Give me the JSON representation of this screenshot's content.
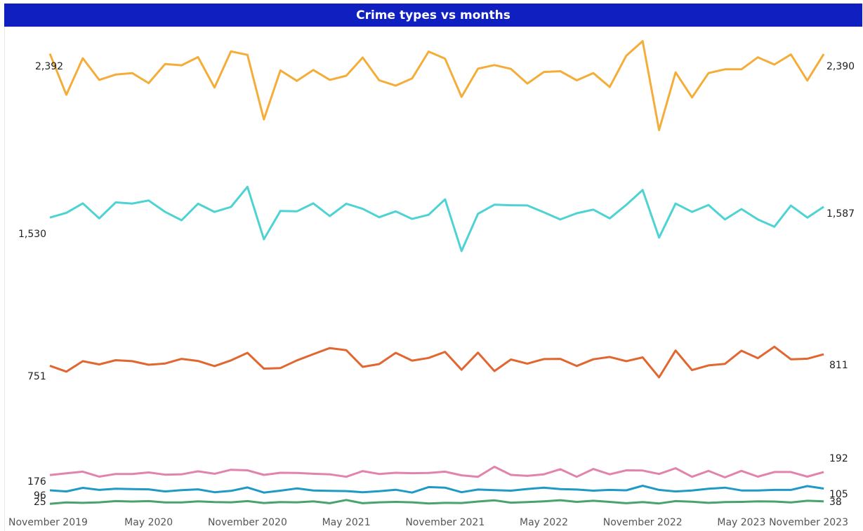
{
  "title": "Crime types vs months",
  "chart_data": {
    "type": "line",
    "title": "Crime types vs months",
    "xlabel": "",
    "ylabel": "",
    "x_start": "2019-11",
    "x_ticks": [
      "November 2019",
      "May 2020",
      "November 2020",
      "May 2021",
      "November 2021",
      "May 2022",
      "November 2022",
      "May 2023",
      "November 2023"
    ],
    "grid": false,
    "series": [
      {
        "color": "#f5ad3a",
        "start_label": "2,392",
        "end_label": "2,390",
        "values": [
          2392,
          2176,
          2368,
          2254,
          2282,
          2290,
          2237,
          2338,
          2331,
          2374,
          2214,
          2404,
          2386,
          2046,
          2304,
          2249,
          2306,
          2254,
          2276,
          2372,
          2252,
          2224,
          2262,
          2403,
          2366,
          2165,
          2313,
          2332,
          2312,
          2235,
          2296,
          2300,
          2252,
          2290,
          2217,
          2381,
          2458,
          1990,
          2294,
          2162,
          2290,
          2310,
          2310,
          2373,
          2335,
          2388,
          2251,
          2390
        ]
      },
      {
        "color": "#4dd3d3",
        "start_label": "1,530",
        "end_label": "1,587",
        "values": [
          1530,
          1555,
          1605,
          1526,
          1610,
          1604,
          1620,
          1560,
          1516,
          1603,
          1560,
          1586,
          1692,
          1416,
          1565,
          1563,
          1605,
          1538,
          1603,
          1576,
          1532,
          1563,
          1523,
          1545,
          1626,
          1354,
          1550,
          1598,
          1595,
          1594,
          1558,
          1520,
          1553,
          1572,
          1526,
          1597,
          1675,
          1425,
          1604,
          1560,
          1596,
          1520,
          1575,
          1520,
          1482,
          1593,
          1530,
          1587
        ]
      },
      {
        "color": "#e16630",
        "start_label": "751",
        "end_label": "811",
        "values": [
          751,
          720,
          775,
          758,
          780,
          775,
          756,
          763,
          787,
          776,
          749,
          779,
          819,
          736,
          739,
          779,
          812,
          844,
          833,
          745,
          760,
          819,
          778,
          792,
          824,
          730,
          820,
          723,
          784,
          762,
          786,
          787,
          750,
          785,
          797,
          775,
          795,
          690,
          831,
          728,
          753,
          761,
          830,
          791,
          851,
          785,
          788,
          811
        ]
      },
      {
        "color": "#e283ae",
        "start_label": "176",
        "end_label": "192",
        "values": [
          176,
          185,
          194,
          168,
          182,
          182,
          190,
          178,
          180,
          196,
          183,
          204,
          201,
          177,
          188,
          187,
          183,
          180,
          167,
          197,
          182,
          188,
          186,
          187,
          194,
          175,
          167,
          220,
          177,
          172,
          180,
          207,
          167,
          208,
          180,
          201,
          200,
          182,
          212,
          167,
          198,
          164,
          198,
          168,
          192,
          192,
          168,
          192
        ]
      },
      {
        "color": "#1f9ac6",
        "start_label": "96",
        "end_label": "105",
        "values": [
          96,
          90,
          109,
          98,
          104,
          102,
          101,
          90,
          97,
          101,
          86,
          93,
          111,
          84,
          94,
          106,
          95,
          93,
          92,
          86,
          91,
          99,
          84,
          113,
          110,
          86,
          100,
          97,
          94,
          103,
          110,
          102,
          100,
          94,
          98,
          96,
          120,
          98,
          90,
          95,
          104,
          110,
          95,
          95,
          98,
          98,
          118,
          105
        ]
      },
      {
        "color": "#4aa26d",
        "start_label": "25",
        "end_label": "38",
        "values": [
          25,
          32,
          30,
          33,
          39,
          37,
          39,
          32,
          32,
          38,
          34,
          33,
          39,
          29,
          34,
          33,
          38,
          28,
          45,
          28,
          33,
          35,
          33,
          27,
          30,
          29,
          37,
          43,
          31,
          34,
          38,
          44,
          35,
          41,
          35,
          28,
          34,
          27,
          39,
          36,
          30,
          34,
          35,
          38,
          37,
          32,
          41,
          38
        ]
      }
    ]
  }
}
